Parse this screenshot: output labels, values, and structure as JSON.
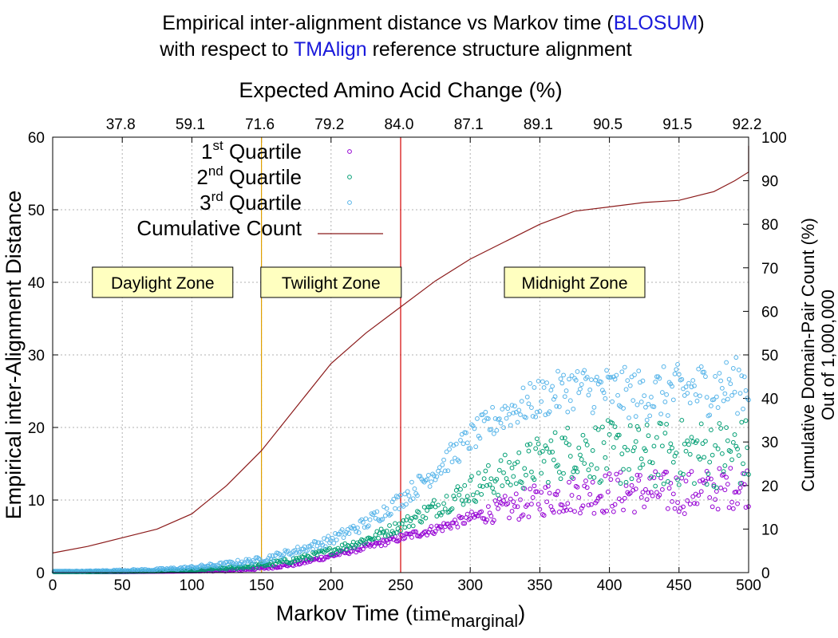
{
  "chart_data": {
    "type": "scatter",
    "title": {
      "line1": [
        "Empirical inter-alignment distance vs Markov time (",
        "BLOSUM",
        ")"
      ],
      "line2": [
        "with respect to ",
        "TMAlign",
        " reference structure alignment"
      ]
    },
    "xlabel": "Markov Time (",
    "xlabel_time": "time",
    "xlabel_sub": "marginal",
    "xlabel_end": ")",
    "x2label": "Expected Amino Acid Change (%)",
    "ylabel": "Empirical inter-Alignment Distance",
    "y2label_line1": "Cumulative Domain-Pair Count (%)",
    "y2label_line2": "Out of 1,000,000",
    "xlim": [
      0,
      500
    ],
    "ylim": [
      0,
      60
    ],
    "y2lim": [
      0,
      100
    ],
    "x_ticks": [
      0,
      50,
      100,
      150,
      200,
      250,
      300,
      350,
      400,
      450,
      500
    ],
    "y_ticks": [
      0,
      10,
      20,
      30,
      40,
      50,
      60
    ],
    "y2_ticks": [
      0,
      10,
      20,
      30,
      40,
      50,
      60,
      70,
      80,
      90,
      100
    ],
    "x2_ticks": [
      {
        "x": 50,
        "label": "37.8"
      },
      {
        "x": 100,
        "label": "59.1"
      },
      {
        "x": 150,
        "label": "71.6"
      },
      {
        "x": 200,
        "label": "79.2"
      },
      {
        "x": 250,
        "label": "84.0"
      },
      {
        "x": 300,
        "label": "87.1"
      },
      {
        "x": 350,
        "label": "89.1"
      },
      {
        "x": 400,
        "label": "90.5"
      },
      {
        "x": 450,
        "label": "91.5"
      },
      {
        "x": 500,
        "label": "92.2"
      }
    ],
    "grid": true,
    "legend_position": "top-left",
    "vlines": [
      {
        "x": 150,
        "color": "#e0a000"
      },
      {
        "x": 250,
        "color": "#d40000"
      }
    ],
    "zones": [
      {
        "label": "Daylight Zone",
        "x_center": 79,
        "y": 40
      },
      {
        "label": "Twilight Zone",
        "x_center": 200,
        "y": 40
      },
      {
        "label": "Midnight Zone",
        "x_center": 375,
        "y": 40
      }
    ],
    "series": [
      {
        "name": "1st Quartile",
        "label_main": "1",
        "label_sup": "st",
        "label_rest": " Quartile",
        "color": "#9400d3",
        "marker": "circle",
        "points": [
          [
            0,
            0.1
          ],
          [
            25,
            0.1
          ],
          [
            50,
            0.1
          ],
          [
            75,
            0.15
          ],
          [
            100,
            0.2
          ],
          [
            125,
            0.3
          ],
          [
            150,
            0.6
          ],
          [
            175,
            1.2
          ],
          [
            200,
            2.3
          ],
          [
            225,
            3.5
          ],
          [
            250,
            4.8
          ],
          [
            275,
            6.0
          ],
          [
            300,
            7.5
          ],
          [
            325,
            8.8
          ],
          [
            350,
            10.0
          ],
          [
            375,
            10.8
          ],
          [
            400,
            11.0
          ],
          [
            425,
            11.2
          ],
          [
            450,
            11.0
          ],
          [
            475,
            11.5
          ],
          [
            500,
            12.0
          ]
        ],
        "jitter": [
          [
            0,
            0
          ],
          [
            100,
            0
          ],
          [
            150,
            0.2
          ],
          [
            200,
            0.3
          ],
          [
            250,
            0.5
          ],
          [
            300,
            0.8
          ],
          [
            330,
            2.0
          ],
          [
            400,
            3.0
          ],
          [
            500,
            3.0
          ]
        ]
      },
      {
        "name": "2nd Quartile",
        "label_main": "2",
        "label_sup": "nd",
        "label_rest": " Quartile",
        "color": "#009e73",
        "marker": "circle",
        "points": [
          [
            0,
            0.1
          ],
          [
            25,
            0.1
          ],
          [
            50,
            0.15
          ],
          [
            75,
            0.2
          ],
          [
            100,
            0.35
          ],
          [
            125,
            0.6
          ],
          [
            150,
            1.0
          ],
          [
            175,
            1.8
          ],
          [
            200,
            3.0
          ],
          [
            225,
            4.5
          ],
          [
            250,
            6.5
          ],
          [
            275,
            9.0
          ],
          [
            300,
            11.5
          ],
          [
            325,
            13.5
          ],
          [
            350,
            15.5
          ],
          [
            375,
            17.0
          ],
          [
            400,
            16.5
          ],
          [
            425,
            16.0
          ],
          [
            450,
            16.5
          ],
          [
            475,
            16.5
          ],
          [
            500,
            16.5
          ]
        ],
        "jitter": [
          [
            0,
            0
          ],
          [
            100,
            0
          ],
          [
            150,
            0.3
          ],
          [
            200,
            0.5
          ],
          [
            250,
            0.8
          ],
          [
            300,
            2.0
          ],
          [
            330,
            3.0
          ],
          [
            400,
            4.5
          ],
          [
            500,
            5.0
          ]
        ]
      },
      {
        "name": "3rd Quartile",
        "label_main": "3",
        "label_sup": "rd",
        "label_rest": " Quartile",
        "color": "#56b4e9",
        "marker": "circle",
        "points": [
          [
            0,
            0.2
          ],
          [
            25,
            0.2
          ],
          [
            50,
            0.3
          ],
          [
            75,
            0.4
          ],
          [
            100,
            0.7
          ],
          [
            125,
            1.2
          ],
          [
            150,
            1.8
          ],
          [
            175,
            3.0
          ],
          [
            200,
            4.5
          ],
          [
            225,
            6.8
          ],
          [
            250,
            10.0
          ],
          [
            275,
            14.0
          ],
          [
            300,
            18.5
          ],
          [
            325,
            22.0
          ],
          [
            350,
            24.0
          ],
          [
            375,
            25.5
          ],
          [
            400,
            25.0
          ],
          [
            425,
            24.5
          ],
          [
            450,
            25.0
          ],
          [
            475,
            25.5
          ],
          [
            500,
            26.0
          ]
        ],
        "jitter": [
          [
            0,
            0
          ],
          [
            100,
            0.2
          ],
          [
            150,
            0.4
          ],
          [
            200,
            0.7
          ],
          [
            250,
            1.2
          ],
          [
            300,
            2.0
          ],
          [
            330,
            2.5
          ],
          [
            400,
            3.5
          ],
          [
            500,
            4.0
          ]
        ]
      },
      {
        "name": "Cumulative Count",
        "axis": "y2",
        "style": "line",
        "color": "#8b1a1a",
        "points": [
          [
            0,
            4.5
          ],
          [
            25,
            6
          ],
          [
            50,
            8
          ],
          [
            75,
            10
          ],
          [
            100,
            13.5
          ],
          [
            125,
            20
          ],
          [
            150,
            28
          ],
          [
            175,
            38
          ],
          [
            200,
            48
          ],
          [
            225,
            55
          ],
          [
            250,
            61
          ],
          [
            275,
            67
          ],
          [
            300,
            72
          ],
          [
            325,
            76
          ],
          [
            350,
            80
          ],
          [
            375,
            83
          ],
          [
            400,
            84
          ],
          [
            425,
            85
          ],
          [
            450,
            85.5
          ],
          [
            475,
            87.5
          ],
          [
            490,
            90
          ],
          [
            500,
            92
          ],
          [
            500,
            98
          ]
        ]
      }
    ]
  }
}
